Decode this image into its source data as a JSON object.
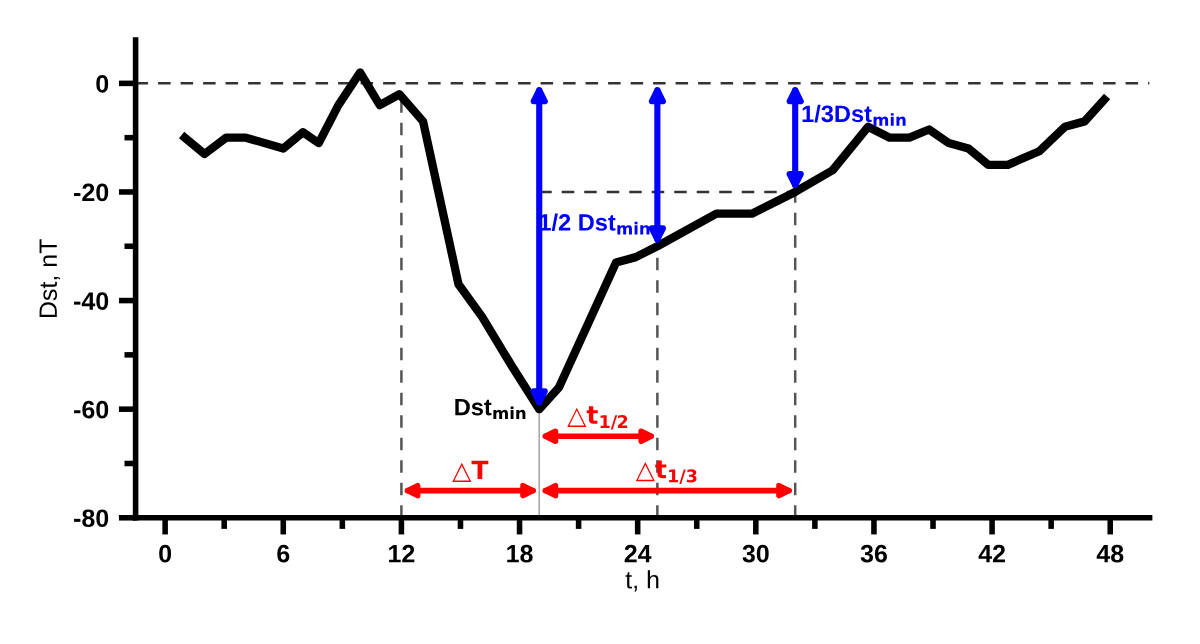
{
  "chart_data": {
    "type": "line",
    "xlabel": "t, h",
    "ylabel": "Dst, nT",
    "series": [
      {
        "color": "#000000",
        "x": [
          1,
          2,
          3.1,
          4.1,
          6,
          7,
          7.8,
          8.8,
          9.9,
          10.9,
          11.9,
          13.1,
          14.9,
          16.1,
          17.6,
          19,
          20,
          22.9,
          23.9,
          25,
          28,
          29.8,
          32,
          33.9,
          35.7,
          36.8,
          37.8,
          38.8,
          39.8,
          40.8,
          41.8,
          42.8,
          44.4,
          45.7,
          46.7,
          47.7
        ],
        "values": [
          -10,
          -13,
          -10,
          -10,
          -12,
          -9,
          -11,
          -4,
          2,
          -4,
          -2,
          -7,
          -37,
          -43,
          -52,
          -60,
          -56,
          -33,
          -32,
          -30,
          -24,
          -24,
          -20,
          -16,
          -8,
          -10,
          -10,
          -8.5,
          -11,
          -12,
          -15,
          -15,
          -12.5,
          -8,
          -7,
          -3
        ]
      }
    ],
    "xlim": [
      -1.5,
      50
    ],
    "ylim": [
      -80,
      8
    ],
    "xticks": [
      0,
      {
        "value": 3,
        "label": null
      },
      6,
      {
        "value": 9,
        "label": null
      },
      12,
      {
        "value": 15,
        "label": null
      },
      18,
      {
        "value": 21,
        "label": null
      },
      24,
      {
        "value": 27,
        "label": null
      },
      30,
      {
        "value": 33,
        "label": null
      },
      36,
      {
        "value": 39,
        "label": null
      },
      42,
      {
        "value": 45,
        "label": null
      },
      48
    ],
    "yticks": [
      -80,
      {
        "value": -70,
        "label": null
      },
      -60,
      {
        "value": -50,
        "label": null
      },
      -40,
      {
        "value": -30,
        "label": null
      },
      -20,
      {
        "value": -10,
        "label": null
      },
      0
    ],
    "grid": false,
    "legend": false,
    "marker": "none",
    "line_style": "solid",
    "ref_lines": [
      {
        "axis": "y",
        "value": 0,
        "line_style": "dashed",
        "color": "#333333"
      },
      {
        "axis": "y",
        "value": -20,
        "line_style": "dashed",
        "color": "#333333"
      },
      {
        "axis": "x",
        "value": 12,
        "line_style": "dashed",
        "color": "#555555"
      },
      {
        "axis": "x",
        "value": 19,
        "line_style": "solid",
        "color": "#aaaaaa"
      },
      {
        "axis": "x",
        "value": 25,
        "line_style": "dashed",
        "color": "#555555"
      },
      {
        "axis": "x",
        "value": 32,
        "line_style": "dashed",
        "color": "#555555"
      }
    ],
    "annotations": [
      {
        "text": "1/2 Dst$_{min}$",
        "x": 25,
        "y": -30
      },
      {
        "text": "1/3Dst$_{min}$",
        "x": 32,
        "y": -20
      },
      {
        "text": "Dst$_{min}$",
        "x": 19,
        "y": -60
      },
      {
        "text": "△T",
        "x": 19,
        "y": -75
      },
      {
        "text": "△t$_{1/2}$",
        "x": 25,
        "y": -65
      },
      {
        "text": "△t$_{1/3}$",
        "x": 25.5,
        "y": -75
      }
    ]
  }
}
